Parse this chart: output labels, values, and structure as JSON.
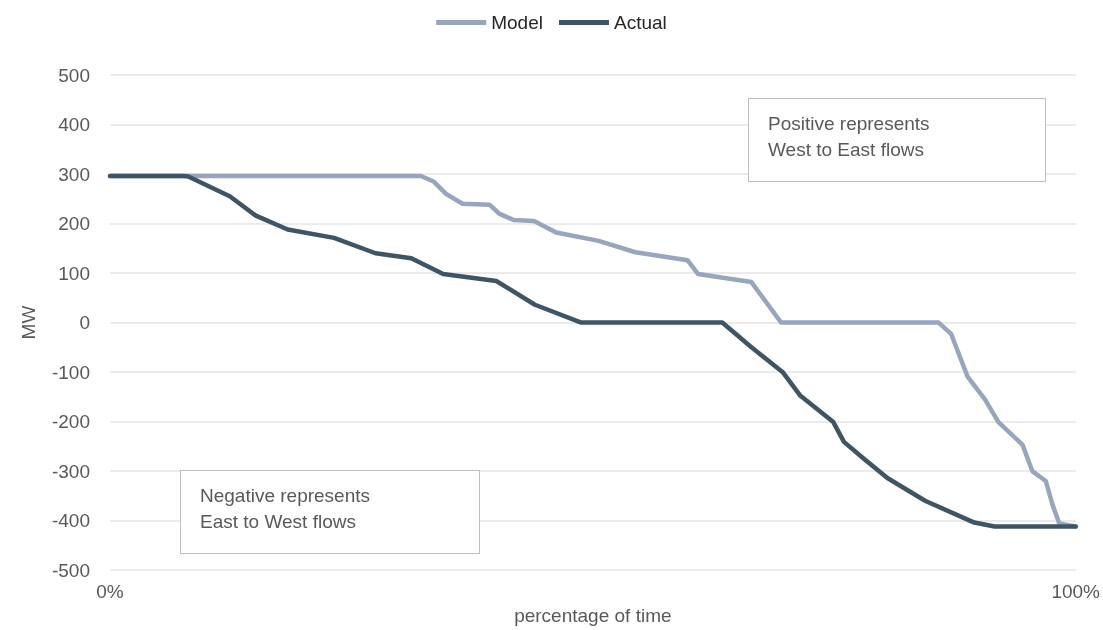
{
  "chart_data": {
    "type": "line",
    "xlabel": "percentage of time",
    "ylabel": "MW",
    "xlim": [
      0,
      100
    ],
    "xticks": [
      {
        "value": 0,
        "label": "0%"
      },
      {
        "value": 100,
        "label": "100%"
      }
    ],
    "ylim": [
      -500,
      500
    ],
    "yticks": [
      -500,
      -400,
      -300,
      -200,
      -100,
      0,
      100,
      200,
      300,
      400,
      500
    ],
    "grid": "y",
    "legend": "top",
    "marker": "none",
    "line_style": "solid",
    "annotations": [
      "Positive represents\nWest to East flows",
      "Negative represents\nEast to West flows"
    ],
    "series": [
      {
        "name": "Model",
        "color": "#97a6bd",
        "x": [
          0,
          32.2,
          33.5,
          34.8,
          36.5,
          39.3,
          40.3,
          41.8,
          43.9,
          46.2,
          50.6,
          54.4,
          59.8,
          60.9,
          66.4,
          69.5,
          85.8,
          87.1,
          88.8,
          90.6,
          92.0,
          94.5,
          95.5,
          96.9,
          97.6,
          98.3,
          100
        ],
        "values": [
          296,
          296,
          285,
          260,
          240,
          238,
          220,
          207,
          205,
          182,
          165,
          142,
          126,
          98,
          82,
          0,
          0,
          -23,
          -109,
          -155,
          -201,
          -247,
          -300,
          -320,
          -368,
          -406,
          -412
        ]
      },
      {
        "name": "Actual",
        "color": "#3f5566",
        "x": [
          0,
          7.6,
          8.1,
          12.4,
          15.1,
          18.4,
          23.2,
          27.5,
          31.2,
          34.5,
          40.0,
          44.0,
          48.8,
          63.4,
          66.3,
          69.7,
          71.5,
          74.9,
          76.0,
          78.0,
          80.5,
          84.4,
          89.5,
          91.6,
          100
        ],
        "values": [
          296,
          296,
          295,
          255,
          216,
          188,
          171,
          140,
          130,
          98,
          84,
          36,
          0,
          0,
          -48,
          -101,
          -148,
          -201,
          -241,
          -274,
          -314,
          -360,
          -404,
          -412,
          -412
        ]
      }
    ]
  }
}
